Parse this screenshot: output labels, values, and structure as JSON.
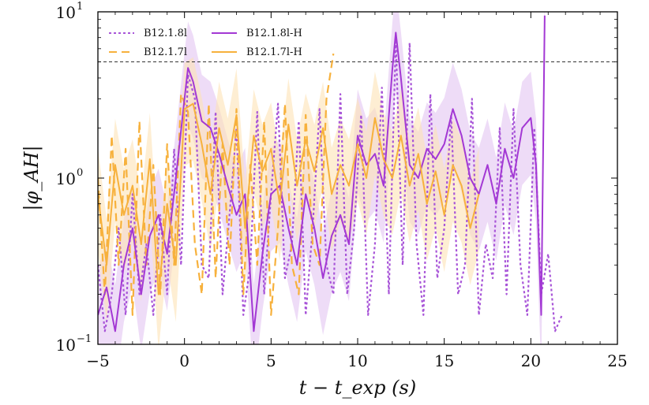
{
  "chart_data": {
    "type": "line",
    "title": "",
    "xlabel": "t − t_exp (s)",
    "ylabel": "|φ_AH|",
    "yscale": "log",
    "xlim": [
      -5,
      25
    ],
    "ylim": [
      0.1,
      10
    ],
    "xticks": [
      -5,
      0,
      5,
      10,
      15,
      20,
      25
    ],
    "xtick_labels": [
      "−5",
      "0",
      "5",
      "10",
      "15",
      "20",
      "25"
    ],
    "yticks": [
      0.1,
      1,
      10
    ],
    "ytick_labels": [
      "10",
      "10",
      "10"
    ],
    "ytick_exponents": [
      "−1",
      "0",
      "1"
    ],
    "threshold_line": {
      "y": 5,
      "style": "dashed",
      "color": "#333333"
    },
    "legend": {
      "location": "top-left",
      "columns": 2
    },
    "series": [
      {
        "name": "B12.1.8l",
        "color": "#a855d8",
        "style": "dotted",
        "x": [
          -5.0,
          -4.6,
          -4.2,
          -3.8,
          -3.4,
          -3.0,
          -2.6,
          -2.2,
          -1.8,
          -1.4,
          -1.0,
          -0.6,
          -0.2,
          0.2,
          0.6,
          1.0,
          1.4,
          1.8,
          2.2,
          2.6,
          3.0,
          3.4,
          3.8,
          4.2,
          4.6,
          5.0,
          5.4,
          5.8,
          6.2,
          6.6,
          7.0,
          7.4,
          7.8,
          8.2,
          8.6,
          9.0,
          9.4,
          9.8,
          10.2,
          10.6,
          11.0,
          11.4,
          11.8,
          12.2,
          12.6,
          13.0,
          13.4,
          13.8,
          14.2,
          14.6,
          15.0,
          15.4,
          15.8,
          16.2,
          16.6,
          17.0,
          17.4,
          17.8,
          18.2,
          18.6,
          19.0,
          19.4,
          19.8,
          20.2,
          20.6,
          21.0,
          21.4,
          21.8
        ],
        "y": [
          0.3,
          0.12,
          0.2,
          0.5,
          0.15,
          0.8,
          0.2,
          0.4,
          0.15,
          0.6,
          0.2,
          1.5,
          0.3,
          4.2,
          3.0,
          0.3,
          0.25,
          2.5,
          0.2,
          0.6,
          2.0,
          0.15,
          0.3,
          2.5,
          0.2,
          0.8,
          2.8,
          0.25,
          0.4,
          2.2,
          0.15,
          0.5,
          2.6,
          0.3,
          0.2,
          3.2,
          0.2,
          0.5,
          2.4,
          0.15,
          0.4,
          3.5,
          0.2,
          6.8,
          0.3,
          6.5,
          0.4,
          0.15,
          3.2,
          0.25,
          0.5,
          2.4,
          0.2,
          0.3,
          3.0,
          0.15,
          0.4,
          0.25,
          2.0,
          0.2,
          2.6,
          0.3,
          0.15,
          2.0,
          0.2,
          0.35,
          0.12,
          0.15
        ]
      },
      {
        "name": "B12.1.7l",
        "color": "#f7b13c",
        "style": "dashed",
        "x": [
          -5.0,
          -4.6,
          -4.2,
          -3.8,
          -3.4,
          -3.0,
          -2.6,
          -2.2,
          -1.8,
          -1.4,
          -1.0,
          -0.6,
          -0.2,
          0.2,
          0.6,
          1.0,
          1.4,
          1.8,
          2.2,
          2.6,
          3.0,
          3.4,
          3.8,
          4.2,
          4.6,
          5.0,
          5.4,
          5.8,
          6.2,
          6.6,
          7.0,
          7.4,
          7.8,
          8.2,
          8.6
        ],
        "y": [
          1.0,
          0.2,
          1.8,
          0.3,
          1.5,
          0.15,
          2.2,
          0.3,
          1.2,
          0.2,
          1.6,
          0.3,
          3.2,
          2.5,
          0.4,
          0.2,
          2.8,
          0.25,
          1.6,
          0.3,
          2.6,
          0.2,
          1.2,
          0.3,
          2.2,
          0.15,
          0.5,
          2.8,
          0.3,
          0.2,
          2.4,
          0.4,
          0.3,
          3.0,
          5.6
        ]
      },
      {
        "name": "B12.1.8l-H",
        "color": "#a338d4",
        "style": "solid",
        "x": [
          -5.0,
          -4.5,
          -4.0,
          -3.5,
          -3.0,
          -2.5,
          -2.0,
          -1.5,
          -1.0,
          -0.5,
          0.0,
          0.2,
          0.5,
          1.0,
          1.5,
          2.0,
          2.5,
          3.0,
          3.5,
          4.0,
          4.5,
          5.0,
          5.5,
          6.0,
          6.5,
          7.0,
          7.5,
          8.0,
          8.5,
          9.0,
          9.5,
          10.0,
          10.5,
          11.0,
          11.5,
          12.0,
          12.2,
          12.5,
          13.0,
          13.5,
          14.0,
          14.5,
          15.0,
          15.5,
          16.0,
          16.5,
          17.0,
          17.5,
          18.0,
          18.5,
          19.0,
          19.5,
          20.0,
          20.3,
          20.6,
          20.8
        ],
        "y": [
          0.15,
          0.22,
          0.12,
          0.3,
          0.5,
          0.2,
          0.45,
          0.6,
          0.35,
          1.0,
          3.0,
          4.6,
          3.8,
          2.2,
          2.0,
          1.4,
          0.9,
          0.6,
          0.8,
          0.12,
          0.35,
          0.8,
          0.9,
          0.5,
          0.3,
          0.8,
          0.5,
          0.25,
          0.45,
          0.6,
          0.4,
          1.8,
          1.2,
          1.4,
          0.9,
          4.5,
          7.5,
          4.0,
          1.2,
          1.0,
          1.5,
          1.3,
          1.6,
          2.6,
          1.8,
          1.0,
          0.8,
          1.2,
          0.7,
          1.5,
          1.0,
          2.0,
          2.3,
          1.2,
          0.15,
          9.5
        ]
      },
      {
        "name": "B12.1.7l-H",
        "color": "#f7b13c",
        "style": "solid",
        "x": [
          -5.0,
          -4.5,
          -4.0,
          -3.5,
          -3.0,
          -2.5,
          -2.0,
          -1.5,
          -1.0,
          -0.5,
          0.0,
          0.5,
          1.0,
          1.5,
          2.0,
          2.5,
          3.0,
          3.5,
          4.0,
          4.5,
          5.0,
          5.5,
          6.0,
          6.5,
          7.0,
          7.5,
          8.0,
          8.5,
          9.0,
          9.5,
          10.0,
          10.5,
          11.0,
          11.5,
          12.0,
          12.5,
          13.0,
          13.5,
          14.0,
          14.5,
          15.0,
          15.5,
          16.0,
          16.5,
          17.0
        ],
        "y": [
          0.8,
          0.3,
          1.2,
          0.6,
          0.9,
          0.4,
          1.3,
          0.2,
          0.7,
          0.3,
          2.6,
          2.8,
          1.6,
          0.8,
          2.0,
          1.2,
          2.4,
          0.5,
          1.8,
          1.1,
          1.5,
          0.7,
          2.1,
          0.9,
          1.7,
          1.1,
          2.0,
          0.8,
          1.2,
          0.9,
          1.6,
          1.0,
          2.3,
          1.3,
          1.0,
          1.8,
          0.9,
          1.4,
          0.7,
          1.1,
          0.6,
          1.2,
          0.9,
          0.5,
          0.8
        ]
      }
    ],
    "shaded_bands": [
      {
        "series": "B12.1.8l-H",
        "color": "#e3c4f2"
      },
      {
        "series": "B12.1.7l-H",
        "color": "#fde3b5"
      }
    ]
  }
}
